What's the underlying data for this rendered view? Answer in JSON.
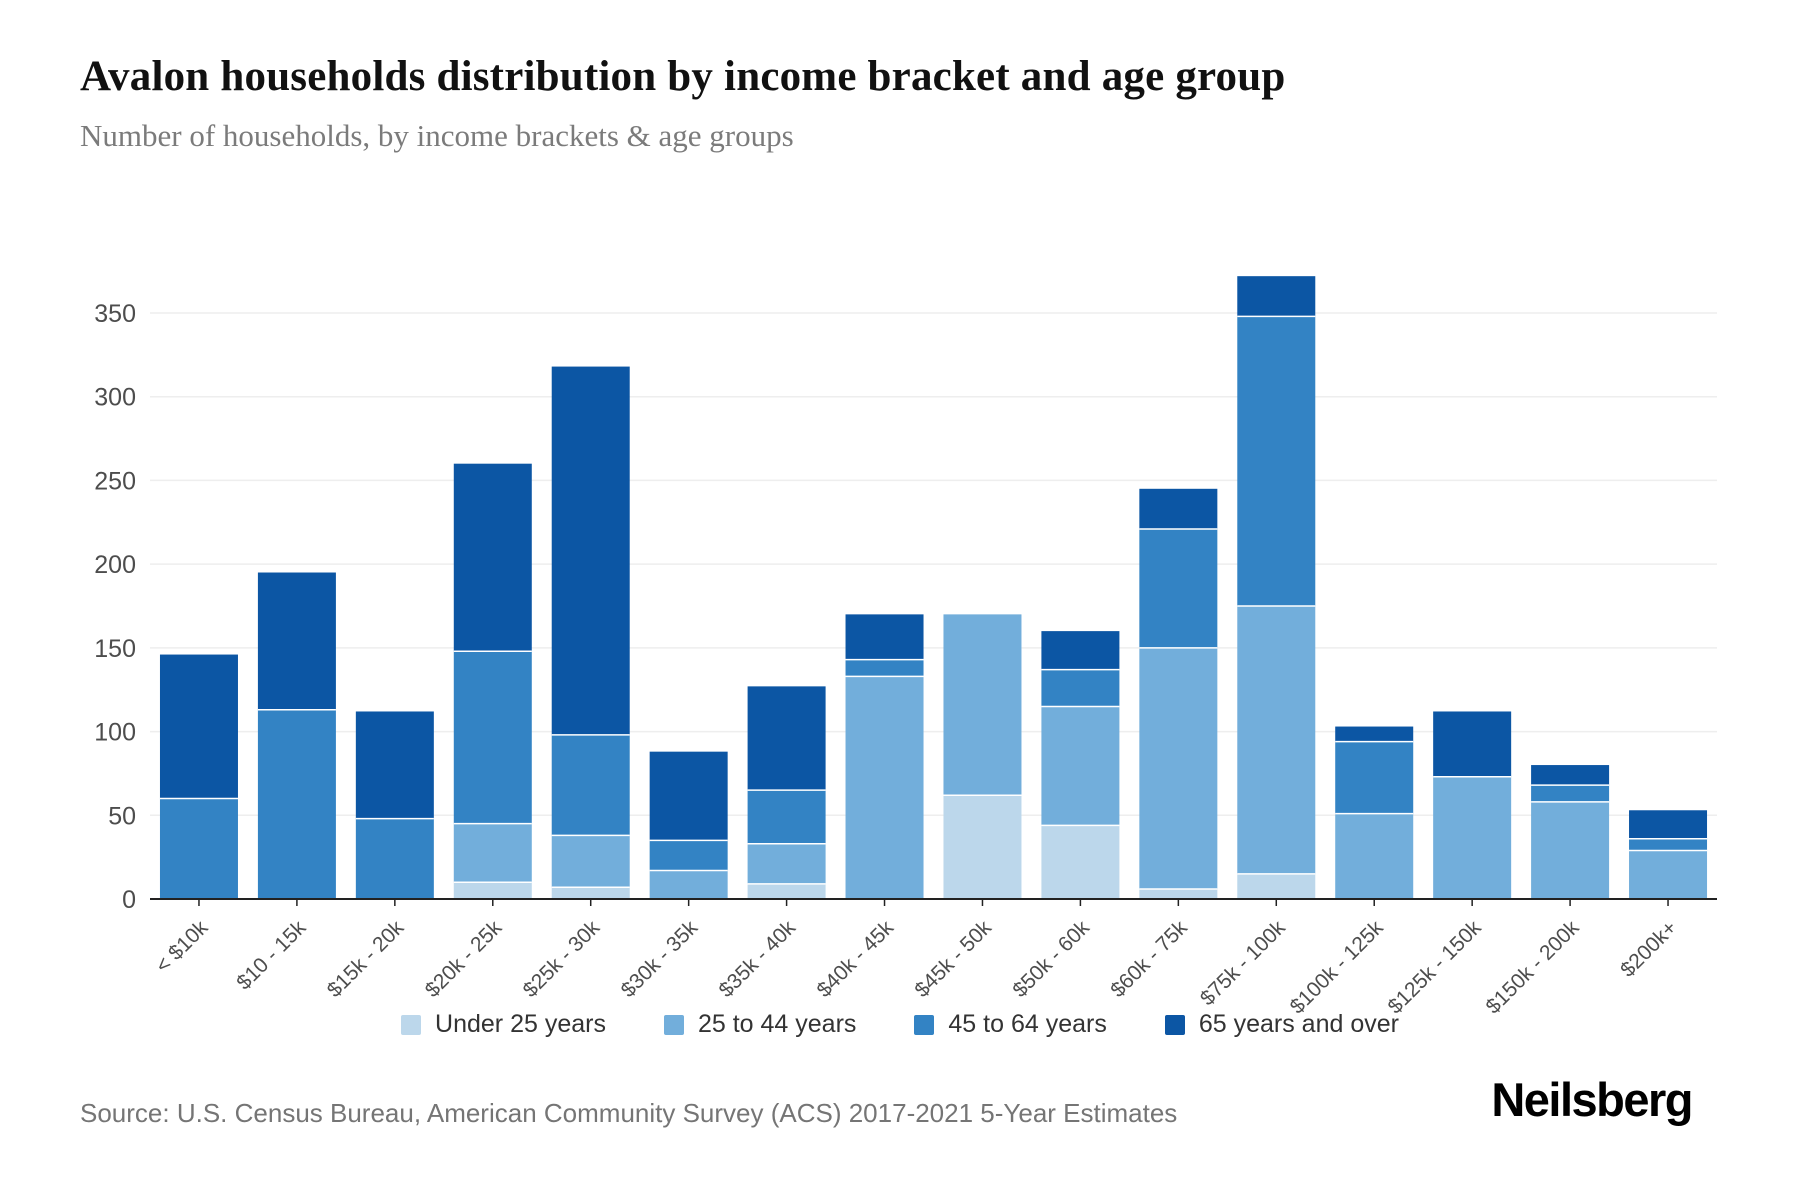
{
  "header": {
    "title": "Avalon households distribution by income bracket and age group",
    "subtitle": "Number of households, by income brackets & age groups"
  },
  "footer": {
    "source": "Source: U.S. Census Bureau, American Community Survey (ACS) 2017-2021 5-Year Estimates",
    "brand": "Neilsberg"
  },
  "chart_data": {
    "type": "bar",
    "stacked": true,
    "title": "Avalon households distribution by income bracket and age group",
    "xlabel": "",
    "ylabel": "Number of households",
    "ylim": [
      0,
      350
    ],
    "yticks": [
      0,
      50,
      100,
      150,
      200,
      250,
      300,
      350
    ],
    "grid": true,
    "legend_position": "bottom",
    "categories": [
      "< $10k",
      "$10 - 15k",
      "$15k - 20k",
      "$20k - 25k",
      "$25k - 30k",
      "$30k - 35k",
      "$35k - 40k",
      "$40k - 45k",
      "$45k - 50k",
      "$50k - 60k",
      "$60k - 75k",
      "$75k - 100k",
      "$100k - 125k",
      "$125k - 150k",
      "$150k - 200k",
      "$200k+"
    ],
    "series": [
      {
        "name": "Under 25 years",
        "color": "#bcd7eb",
        "values": [
          0,
          0,
          0,
          10,
          7,
          0,
          9,
          0,
          62,
          44,
          6,
          15,
          0,
          0,
          0,
          0
        ]
      },
      {
        "name": "25 to 44 years",
        "color": "#72aedb",
        "values": [
          0,
          0,
          0,
          35,
          31,
          17,
          24,
          133,
          108,
          71,
          144,
          160,
          51,
          73,
          58,
          29
        ]
      },
      {
        "name": "45 to 64 years",
        "color": "#3383c4",
        "values": [
          60,
          113,
          48,
          103,
          60,
          18,
          32,
          10,
          0,
          22,
          71,
          173,
          43,
          0,
          10,
          7
        ]
      },
      {
        "name": "65 years and over",
        "color": "#0c56a4",
        "values": [
          86,
          82,
          64,
          112,
          220,
          53,
          62,
          27,
          0,
          23,
          24,
          24,
          9,
          39,
          12,
          17
        ]
      }
    ],
    "axis_text_color": "#4d4d4d",
    "gridline_color": "#eeeeee",
    "axis_line_color": "#222222"
  }
}
